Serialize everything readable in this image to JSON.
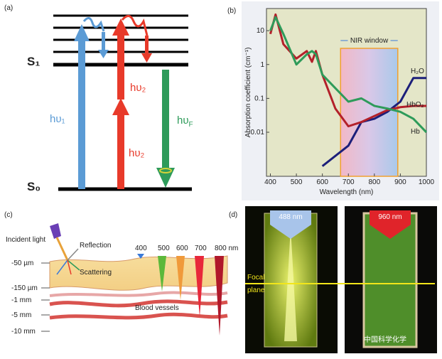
{
  "panel_a": {
    "label": "(a)",
    "s1": "S₁",
    "s0": "S₀",
    "hv1": "hυ₁",
    "hv2_upper": "hυ₂",
    "hv2_lower": "hυ₂",
    "hvf": {
      "base": "hυ",
      "sub": "F"
    }
  },
  "chart_data": {
    "type": "line",
    "panel_label": "(b)",
    "x_label": "Wavelength (nm)",
    "y_label": "Absorption coefficient (cm⁻¹)",
    "x": [
      400,
      420,
      450,
      500,
      540,
      560,
      575,
      600,
      650,
      700,
      750,
      800,
      850,
      900,
      950,
      1000
    ],
    "series": [
      {
        "name": "H₂O",
        "color": "#1c1f7a",
        "values": [
          null,
          null,
          null,
          null,
          null,
          null,
          null,
          0.001,
          0.002,
          0.004,
          0.02,
          0.025,
          0.04,
          0.08,
          0.4,
          0.4
        ]
      },
      {
        "name": "HbO₂",
        "color": "#b3202a",
        "values": [
          8,
          30,
          4,
          1.5,
          2.5,
          1.2,
          2.5,
          0.5,
          0.05,
          0.015,
          0.02,
          0.03,
          0.045,
          0.055,
          0.06,
          0.06
        ]
      },
      {
        "name": "Hb",
        "color": "#2e9b5a",
        "values": [
          10,
          25,
          8,
          1,
          2,
          2.5,
          2,
          0.5,
          0.2,
          0.08,
          0.1,
          0.06,
          0.05,
          0.04,
          0.025,
          0.01
        ]
      }
    ],
    "xlim": [
      385,
      1000
    ],
    "xticks": [
      400,
      500,
      600,
      700,
      800,
      900,
      1000
    ],
    "ylim": [
      0.0005,
      45
    ],
    "yticks": [
      0.01,
      0.1,
      1,
      10
    ],
    "log_y": true,
    "nir_window": {
      "label": "NIR window",
      "range": [
        670,
        890
      ]
    }
  },
  "panel_c": {
    "label": "(c)",
    "incident": "Incident light",
    "reflection": "Reflection",
    "scattering": "Scattering",
    "wavelengths": [
      "400",
      "500",
      "600",
      "700",
      "800 nm"
    ],
    "depths": [
      "-50 µm",
      "-150 µm",
      "-1 mm",
      "-5 mm",
      "-10 mm"
    ],
    "vessels": "Blood vessels"
  },
  "panel_d": {
    "label": "(d)",
    "left_beam": "488 nm",
    "right_beam": "960 nm",
    "focal": [
      "Focal",
      "plane"
    ],
    "watermark": "中国科学化学"
  }
}
